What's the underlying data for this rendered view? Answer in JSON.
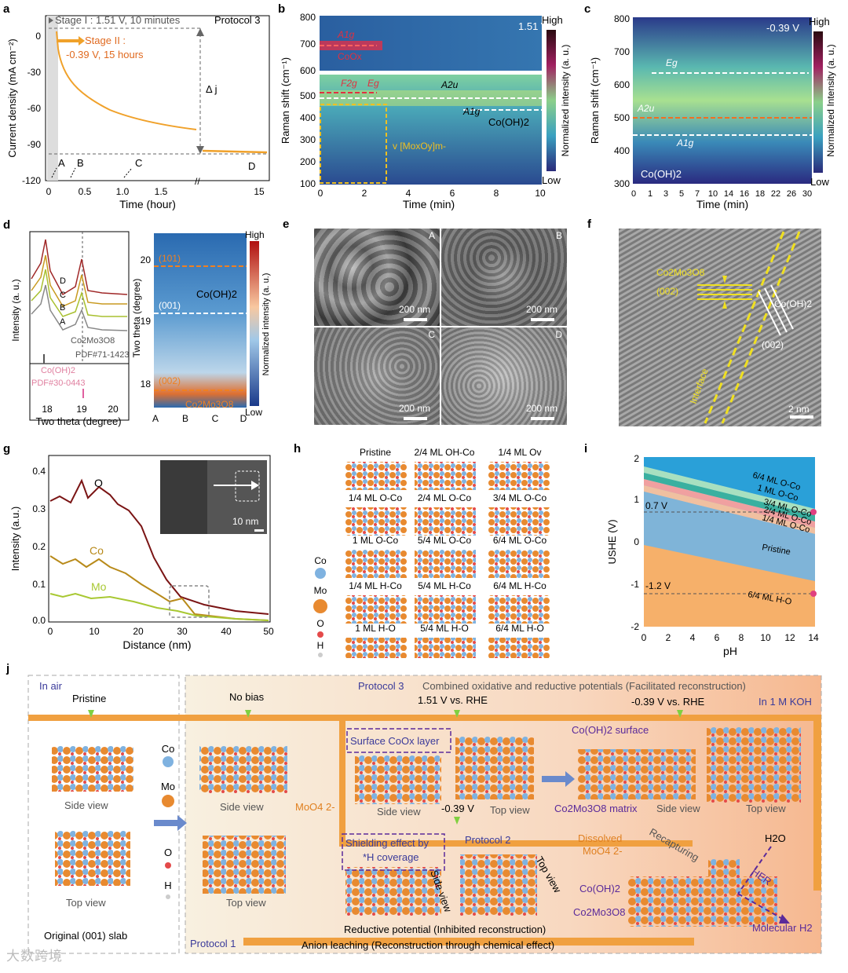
{
  "panel_letters": [
    "a",
    "b",
    "c",
    "d",
    "e",
    "f",
    "g",
    "h",
    "i",
    "j"
  ],
  "colors": {
    "orange": "#f0a12a",
    "darkred": "#7a1414",
    "olive": "#b88a1a",
    "green": "#a8c832",
    "gray": "#888888",
    "co": "#7fb2e0",
    "mo": "#e88a30",
    "o": "#e44a4a"
  },
  "panel_a": {
    "stage1": "Stage I : 1.51 V, 10 minutes",
    "stage2_line1": "Stage II :",
    "stage2_line2": "-0.39 V, 15 hours",
    "protocol": "Protocol 3",
    "delta_j": "Δ j",
    "ylabel": "Current density (mA cm⁻²)",
    "xlabel": "Time (hour)",
    "yticks": [
      "0",
      "-30",
      "-60",
      "-90",
      "-120"
    ],
    "xticks": [
      "0",
      "0.5",
      "1.0",
      "1.5",
      "15"
    ],
    "markers": [
      "A",
      "B",
      "C",
      "D"
    ]
  },
  "panel_b": {
    "top_voltage": "1.51 V",
    "ylabel": "Raman shift (cm⁻¹)",
    "xlabel": "Time (min)",
    "cbar_label": "Normalized intensity (a. u.)",
    "cbar_high": "High",
    "cbar_low": "Low",
    "top_yticks": [
      "800",
      "700",
      "600"
    ],
    "bottom_yticks": [
      "500",
      "400",
      "300",
      "200",
      "100"
    ],
    "xticks": [
      "0",
      "2",
      "4",
      "6",
      "8",
      "10"
    ],
    "labels": {
      "a1g": "A1g",
      "coox": "CoOx",
      "f2g": "F2g",
      "eg": "Eg",
      "a2u": "A2u",
      "a1g2": "A1g",
      "cooh": "Co(OH)2",
      "moxoy": "v [MoxOy]m-"
    }
  },
  "panel_c": {
    "voltage": "-0.39 V",
    "ylabel": "Raman shift (cm⁻¹)",
    "xlabel": "Time (min)",
    "cbar_label": "Normalized Intensity (a. u.)",
    "cbar_high": "High",
    "cbar_low": "Low",
    "yticks": [
      "800",
      "700",
      "600",
      "500",
      "400",
      "300"
    ],
    "xticks": [
      "0",
      "1",
      "3",
      "5",
      "7",
      "10",
      "14",
      "16",
      "18",
      "22",
      "26",
      "30"
    ],
    "labels": {
      "eg": "Eg",
      "a2u": "A2u",
      "a1g": "A1g",
      "cooh": "Co(OH)2"
    }
  },
  "panel_d": {
    "ylabel_left": "Intensity (a. u.)",
    "xlabel_left": "Two theta (degree)",
    "xticks_left": [
      "18",
      "19",
      "20"
    ],
    "curve_labels": [
      "D",
      "C",
      "B",
      "A"
    ],
    "ref1_name": "Co2Mo3O8",
    "ref1_pdf": "PDF#71-1423",
    "ref2_name": "Co(OH)2",
    "ref2_pdf": "PDF#30-0443",
    "ylabel_right": "Two theta (degree)",
    "yticks_right": [
      "20",
      "19",
      "18"
    ],
    "xticks_right": [
      "A",
      "B",
      "C",
      "D"
    ],
    "labels": {
      "l101": "(101)",
      "l001": "(001)",
      "l002": "(002)",
      "cooh": "Co(OH)2",
      "comoo": "Co2Mo3O8"
    },
    "cbar_label": "Normalized intensity (a. u.)",
    "cbar_high": "High",
    "cbar_low": "Low"
  },
  "panel_e": {
    "tiles": [
      {
        "letter": "A",
        "scale": "200 nm"
      },
      {
        "letter": "B",
        "scale": "200 nm"
      },
      {
        "letter": "C",
        "scale": "200 nm"
      },
      {
        "letter": "D",
        "scale": "200 nm"
      }
    ]
  },
  "panel_f": {
    "label1": "Co2Mo3O8",
    "label2": "(002)",
    "label3": "Co(OH)2",
    "label4": "(002)",
    "interface": "Interface",
    "scale": "2 nm"
  },
  "panel_g": {
    "ylabel": "Intensity (a.u.)",
    "xlabel": "Distance (nm)",
    "yticks": [
      "0.4",
      "0.3",
      "0.2",
      "0.1",
      "0.0"
    ],
    "xticks": [
      "0",
      "10",
      "20",
      "30",
      "40",
      "50"
    ],
    "series": [
      "O",
      "Co",
      "Mo"
    ],
    "inset_scale": "10 nm"
  },
  "panel_h": {
    "labels": [
      "Pristine",
      "2/4 ML OH-Co",
      "1/4 ML Ov",
      "1/4 ML O-Co",
      "2/4 ML O-Co",
      "3/4 ML O-Co",
      "1 ML O-Co",
      "5/4 ML O-Co",
      "6/4 ML O-Co",
      "1/4 ML H-Co",
      "5/4 ML H-Co",
      "6/4 ML H-Co",
      "1 ML H-O",
      "5/4 ML H-O",
      "6/4 ML H-O"
    ],
    "legend": [
      "Co",
      "Mo",
      "O",
      "H"
    ]
  },
  "panel_i": {
    "ylabel": "USHE (V)",
    "xlabel": "pH",
    "yticks": [
      "2",
      "1",
      "0",
      "-1",
      "-2"
    ],
    "xticks": [
      "0",
      "2",
      "4",
      "6",
      "8",
      "10",
      "12",
      "14"
    ],
    "regions": [
      "6/4 ML O-Co",
      "1 ML O-Co",
      "3/4 ML O-Co",
      "2/4 ML O-Co",
      "1/4 ML O-Co",
      "Pristine",
      "6/4 ML H-O"
    ],
    "line1": "0.7 V",
    "line2": "-1.2 V"
  },
  "panel_j": {
    "in_air": "In air",
    "pristine": "Pristine",
    "side_view": "Side view",
    "top_view": "Top view",
    "original": "Original (001) slab",
    "no_bias": "No bias",
    "moo4": "MoO4 2-",
    "protocol1": "Protocol 1",
    "protocol2": "Protocol 2",
    "protocol3": "Protocol 3",
    "combined": "Combined oxidative and reductive potentials (Facilitated reconstruction)",
    "v151": "1.51 V vs. RHE",
    "v039": "-0.39 V vs. RHE",
    "in_koh": "In 1 M KOH",
    "surface_coox": "Surface CoOx layer",
    "v039_short": "-0.39 V",
    "cooh_surface": "Co(OH)2 surface",
    "comoo_matrix": "Co2Mo3O8 matrix",
    "shielding_line1": "Shielding effect by",
    "shielding_line2": "*H coverage",
    "side_view_rot": "Side view",
    "top_view_rot": "Top view",
    "dissolved_line1": "Dissolved",
    "dissolved_line2": "MoO4 2-",
    "recapturing": "Recapturing",
    "h2o": "H2O",
    "her": "HER",
    "cooh": "Co(OH)2",
    "comoo": "Co2Mo3O8",
    "molecular_h2": "Molecular H2",
    "reductive": "Reductive potential (Inhibited reconstruction)",
    "anion": "Anion leaching (Reconstruction through chemical effect)",
    "legend": [
      "Co",
      "Mo",
      "O",
      "H"
    ]
  },
  "watermark": "大数跨境"
}
